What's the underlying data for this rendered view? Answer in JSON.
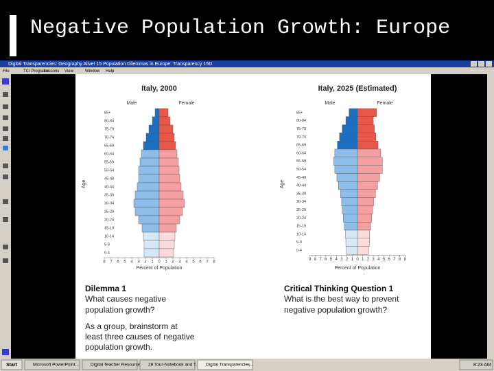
{
  "slide_title": "Negative Population Growth: Europe",
  "window": {
    "title": "Digital Transparencies: Geography Alive! 15 Population Dilemmas in Europe: Transparency 15D",
    "menu": [
      "File",
      "TCI Programs",
      "Lessons",
      "View",
      "Window",
      "Help"
    ]
  },
  "chart_data": [
    {
      "type": "pyramid",
      "title": "Italy, 2000",
      "y_label": "Age",
      "x_label": "Percent of Population",
      "categories": [
        "85+",
        "80-84",
        "75-79",
        "70-74",
        "65-69",
        "60-64",
        "55-59",
        "50-54",
        "45-49",
        "40-44",
        "35-39",
        "30-34",
        "25-29",
        "20-24",
        "15-19",
        "10-14",
        "5-9",
        "0-4"
      ],
      "series": [
        {
          "name": "Male",
          "side": "left",
          "values": [
            0.6,
            1.0,
            1.5,
            1.9,
            2.3,
            2.6,
            2.8,
            3.0,
            3.0,
            3.2,
            3.5,
            3.7,
            3.5,
            3.0,
            2.5,
            2.3,
            2.2,
            2.2
          ],
          "colors": [
            "#1f6fc0",
            "#1f6fc0",
            "#1f6fc0",
            "#1f6fc0",
            "#1f6fc0",
            "#8dbde8",
            "#8dbde8",
            "#8dbde8",
            "#8dbde8",
            "#8dbde8",
            "#8dbde8",
            "#8dbde8",
            "#8dbde8",
            "#8dbde8",
            "#8dbde8",
            "#d6e8f7",
            "#d6e8f7",
            "#d6e8f7"
          ]
        },
        {
          "name": "Female",
          "side": "right",
          "values": [
            1.3,
            1.6,
            2.0,
            2.2,
            2.4,
            2.6,
            2.8,
            2.9,
            3.0,
            3.2,
            3.5,
            3.7,
            3.4,
            3.0,
            2.5,
            2.3,
            2.2,
            2.1
          ],
          "colors": [
            "#e8574a",
            "#e8574a",
            "#e8574a",
            "#e8574a",
            "#e8574a",
            "#f4a0a3",
            "#f4a0a3",
            "#f4a0a3",
            "#f4a0a3",
            "#f4a0a3",
            "#f4a0a3",
            "#f4a0a3",
            "#f4a0a3",
            "#f4a0a3",
            "#f4a0a3",
            "#fadada",
            "#fadada",
            "#fadada"
          ]
        }
      ],
      "xlim": [
        -8,
        8
      ],
      "xticks": [
        {
          "value": -8,
          "label": "8"
        },
        {
          "value": -7,
          "label": "7"
        },
        {
          "value": -6,
          "label": "6"
        },
        {
          "value": -5,
          "label": "5"
        },
        {
          "value": -4,
          "label": "4"
        },
        {
          "value": -3,
          "label": "3"
        },
        {
          "value": -2,
          "label": "2"
        },
        {
          "value": -1,
          "label": "1"
        },
        0,
        1,
        2,
        3,
        4,
        5,
        6,
        7,
        8
      ]
    },
    {
      "type": "pyramid",
      "title": "Italy, 2025 (Estimated)",
      "y_label": "Age",
      "x_label": "Percent of Population",
      "categories": [
        "85+",
        "80-84",
        "75-79",
        "70-74",
        "65-69",
        "60-64",
        "55-59",
        "50-54",
        "45-49",
        "40-44",
        "35-39",
        "30-34",
        "25-29",
        "20-24",
        "15-19",
        "10-14",
        "5-9",
        "0-4"
      ],
      "series": [
        {
          "name": "Male",
          "side": "left",
          "values": [
            1.6,
            2.2,
            2.9,
            3.4,
            3.8,
            4.3,
            4.5,
            4.3,
            3.9,
            3.6,
            3.2,
            3.0,
            2.9,
            2.7,
            2.5,
            2.3,
            2.2,
            2.1
          ],
          "colors": [
            "#1f6fc0",
            "#1f6fc0",
            "#1f6fc0",
            "#1f6fc0",
            "#1f6fc0",
            "#8dbde8",
            "#8dbde8",
            "#8dbde8",
            "#8dbde8",
            "#8dbde8",
            "#8dbde8",
            "#8dbde8",
            "#8dbde8",
            "#8dbde8",
            "#8dbde8",
            "#d6e8f7",
            "#d6e8f7",
            "#d6e8f7"
          ]
        },
        {
          "name": "Female",
          "side": "right",
          "values": [
            3.6,
            3.0,
            3.2,
            3.5,
            3.9,
            4.4,
            4.7,
            4.7,
            4.2,
            3.8,
            3.4,
            3.1,
            2.9,
            2.7,
            2.5,
            2.3,
            2.3,
            2.1
          ],
          "colors": [
            "#e8574a",
            "#e8574a",
            "#e8574a",
            "#e8574a",
            "#e8574a",
            "#f4a0a3",
            "#f4a0a3",
            "#f4a0a3",
            "#f4a0a3",
            "#f4a0a3",
            "#f4a0a3",
            "#f4a0a3",
            "#f4a0a3",
            "#f4a0a3",
            "#f4a0a3",
            "#fadada",
            "#fadada",
            "#fadada"
          ]
        }
      ],
      "xlim": [
        -9,
        9
      ],
      "xticks": [
        {
          "value": -9,
          "label": "9"
        },
        {
          "value": -8,
          "label": "8"
        },
        {
          "value": -7,
          "label": "7"
        },
        {
          "value": -6,
          "label": "6"
        },
        {
          "value": -5,
          "label": "5"
        },
        {
          "value": -4,
          "label": "4"
        },
        {
          "value": -3,
          "label": "3"
        },
        {
          "value": -2,
          "label": "2"
        },
        {
          "value": -1,
          "label": "1"
        },
        0,
        1,
        2,
        3,
        4,
        5,
        6,
        7,
        8,
        9
      ]
    }
  ],
  "dilemma": {
    "heading": "Dilemma 1",
    "question": [
      "What causes negative",
      "population growth?"
    ],
    "task": [
      "As a group, brainstorm at",
      "least three causes of negative",
      "population growth."
    ]
  },
  "critical": {
    "heading": "Critical Thinking Question 1",
    "question": [
      "What is the best way to prevent",
      "negative population growth?"
    ]
  },
  "taskbar": {
    "start": "Start",
    "items": [
      "Microsoft PowerPoint...",
      "Digital Teacher Resources",
      "28 Tour-Notebook and T...",
      "Digital Transparencies..."
    ],
    "clock": "8:23 AM"
  }
}
